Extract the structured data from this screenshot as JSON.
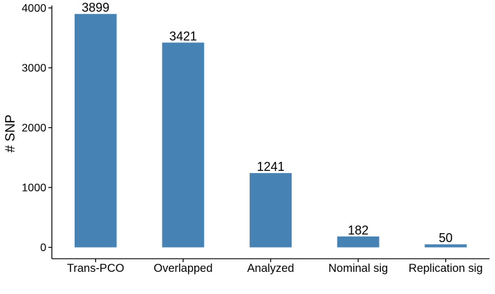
{
  "chart_data": {
    "type": "bar",
    "title": "",
    "xlabel": "",
    "ylabel": "# SNP",
    "categories": [
      "Trans-PCO",
      "Overlapped",
      "Analyzed",
      "Nominal sig",
      "Replication sig"
    ],
    "values": [
      3899,
      3421,
      1241,
      182,
      50
    ],
    "data_labels": [
      "3899",
      "3421",
      "1241",
      "182",
      "50"
    ],
    "yticks": [
      0,
      1000,
      2000,
      3000,
      4000
    ],
    "ytick_labels": [
      "0",
      "1000",
      "2000",
      "3000",
      "4000"
    ],
    "ylim": [
      -190,
      4040
    ],
    "bar_color": "#4682b4",
    "grid": false,
    "legend": "none"
  }
}
